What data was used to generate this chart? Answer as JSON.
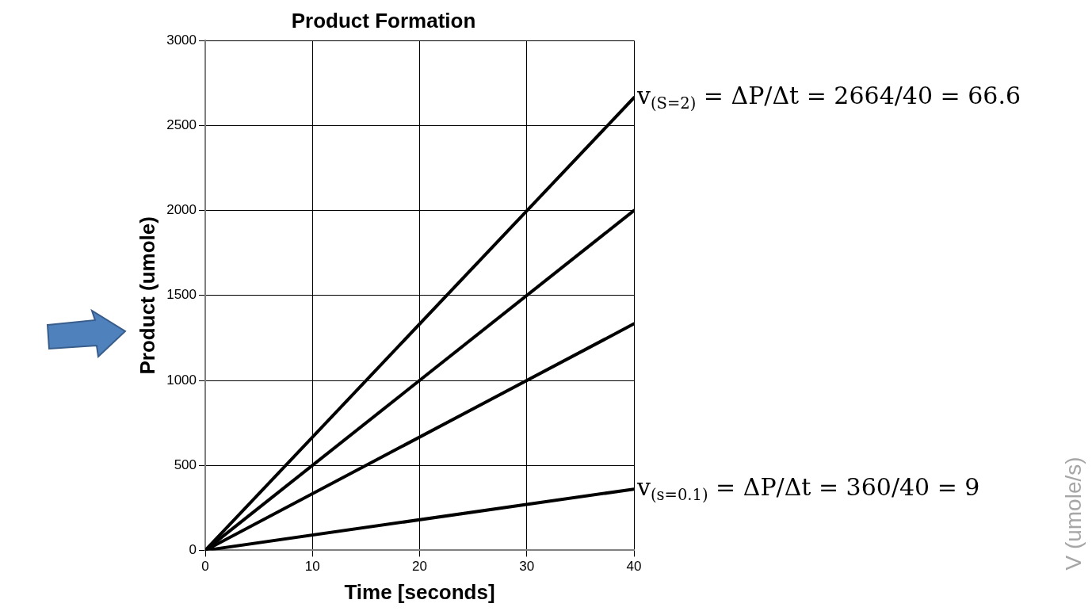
{
  "chart_data": {
    "type": "line",
    "title": "Product Formation",
    "xlabel": "Time [seconds]",
    "ylabel": "Product (umole)",
    "x": [
      0,
      40
    ],
    "series": [
      {
        "color": "#000000",
        "values": [
          0,
          2664
        ]
      },
      {
        "color": "#000000",
        "values": [
          0,
          2000
        ]
      },
      {
        "color": "#000000",
        "values": [
          0,
          1333
        ]
      },
      {
        "color": "#000000",
        "values": [
          0,
          360
        ]
      }
    ],
    "xlim": [
      0,
      40
    ],
    "xticks": [
      0,
      10,
      20,
      30,
      40
    ],
    "ylim": [
      0,
      3000
    ],
    "yticks": [
      0,
      500,
      1000,
      1500,
      2000,
      2500,
      3000
    ],
    "grid": true,
    "legend": false,
    "marker": "none",
    "line_style": "solid",
    "annotations": [
      {
        "text": "v$_{(S=2)}$ = ΔP/Δt = 2664/40 = 66.6",
        "x": 40,
        "y": 2664
      },
      {
        "text": "v$_{(s=0.1)}$ = ΔP/Δt = 360/40 = 9",
        "x": 40,
        "y": 360
      },
      "V (umole/s)"
    ]
  }
}
